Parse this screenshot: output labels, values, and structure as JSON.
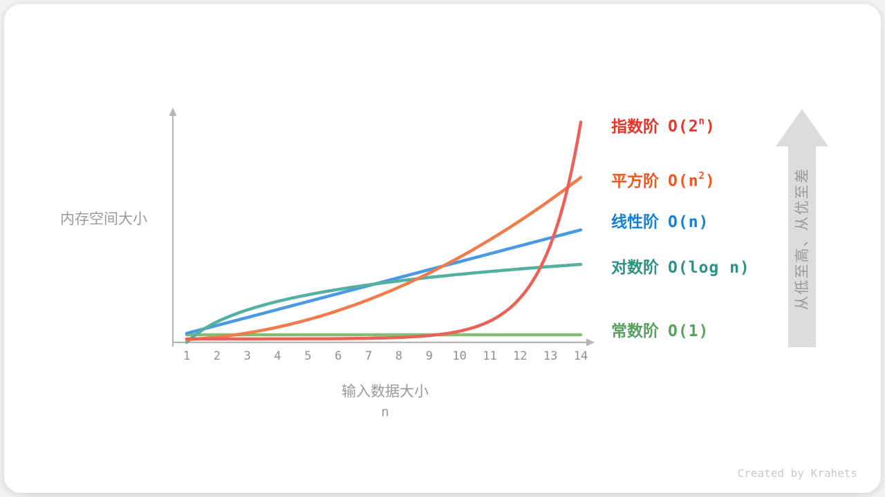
{
  "page": {
    "watermark": "Created by Krahets"
  },
  "chart_data": {
    "type": "line",
    "title": "",
    "ylabel": "内存空间大小",
    "xlabel": "输入数据大小",
    "xlabel_sub": "n",
    "x_range": [
      1,
      14
    ],
    "x_ticks": [
      "1",
      "2",
      "3",
      "4",
      "5",
      "6",
      "7",
      "8",
      "9",
      "10",
      "11",
      "12",
      "13",
      "14"
    ],
    "grid": false,
    "legend_position": "right",
    "axis_color": "#b5b5b5",
    "series": [
      {
        "id": "exponential",
        "label": "指数阶",
        "formula_pre": "O(2",
        "formula_sup": "n",
        "formula_post": ")",
        "function": "2^n",
        "label_color": "#e5352b",
        "curve_color": "#ea6157",
        "x": [
          1,
          2,
          3,
          4,
          5,
          6,
          7,
          8,
          9,
          10,
          11,
          12,
          13,
          14
        ],
        "values": [
          2,
          4,
          8,
          16,
          32,
          64,
          128,
          256,
          512,
          1024,
          2048,
          4096,
          8192,
          16384
        ]
      },
      {
        "id": "quadratic",
        "label": "平方阶",
        "formula_pre": "O(n",
        "formula_sup": "2",
        "formula_post": ")",
        "function": "n^2",
        "label_color": "#f0561d",
        "curve_color": "#f07c4c",
        "x": [
          1,
          2,
          3,
          4,
          5,
          6,
          7,
          8,
          9,
          10,
          11,
          12,
          13,
          14
        ],
        "values": [
          1,
          4,
          9,
          16,
          25,
          36,
          49,
          64,
          81,
          100,
          121,
          144,
          169,
          196
        ]
      },
      {
        "id": "linear",
        "label": "线性阶",
        "formula_pre": "O(n)",
        "formula_sup": "",
        "formula_post": "",
        "function": "n",
        "label_color": "#1181d7",
        "curve_color": "#4a99e3",
        "x": [
          1,
          2,
          3,
          4,
          5,
          6,
          7,
          8,
          9,
          10,
          11,
          12,
          13,
          14
        ],
        "values": [
          1,
          2,
          3,
          4,
          5,
          6,
          7,
          8,
          9,
          10,
          11,
          12,
          13,
          14
        ]
      },
      {
        "id": "logarithmic",
        "label": "对数阶",
        "formula_pre": "O(log n)",
        "formula_sup": "",
        "formula_post": "",
        "function": "log n",
        "label_color": "#2d9282",
        "curve_color": "#54b0a0",
        "x": [
          1,
          2,
          3,
          4,
          5,
          6,
          7,
          8,
          9,
          10,
          11,
          12,
          13,
          14
        ],
        "values": [
          0,
          1,
          1.58,
          2,
          2.32,
          2.58,
          2.81,
          3,
          3.17,
          3.32,
          3.46,
          3.58,
          3.7,
          3.81
        ]
      },
      {
        "id": "constant",
        "label": "常数阶",
        "formula_pre": "O(1)",
        "formula_sup": "",
        "formula_post": "",
        "function": "1",
        "label_color": "#57a05f",
        "curve_color": "#84bd74",
        "x": [
          1,
          2,
          3,
          4,
          5,
          6,
          7,
          8,
          9,
          10,
          11,
          12,
          13,
          14
        ],
        "values": [
          1,
          1,
          1,
          1,
          1,
          1,
          1,
          1,
          1,
          1,
          1,
          1,
          1,
          1
        ]
      }
    ],
    "annotation_arrow": {
      "text": "从低至高、从优至差",
      "direction": "up",
      "color": "#dcdcdc",
      "text_color": "#9a9a9a"
    }
  }
}
